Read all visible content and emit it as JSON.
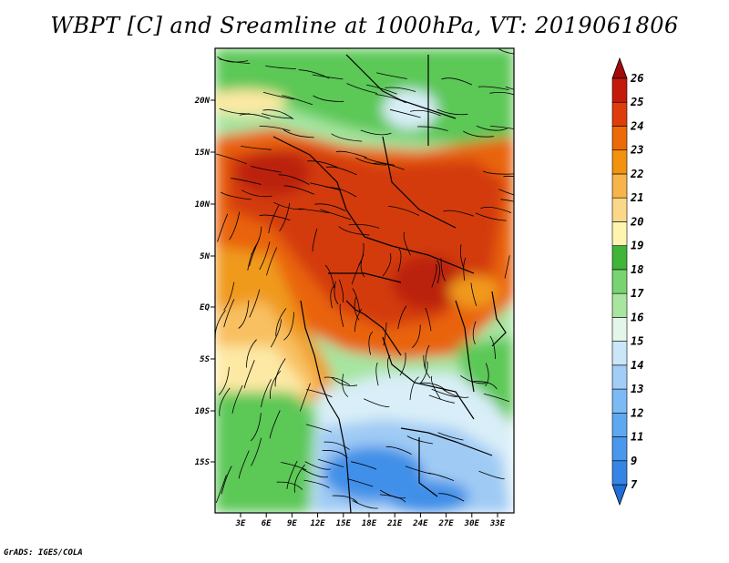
{
  "title": "WBPT [C] and Sreamline at 1000hPa, VT: 2019061806",
  "footer": "GrADS: IGES/COLA",
  "lat_labels": [
    "20N",
    "15N",
    "10N",
    "5N",
    "EQ",
    "5S",
    "10S",
    "15S"
  ],
  "lon_labels": [
    "3E",
    "6E",
    "9E",
    "12E",
    "15E",
    "18E",
    "21E",
    "24E",
    "27E",
    "30E",
    "33E"
  ],
  "colorbar": {
    "levels": [
      "7",
      "9",
      "11",
      "12",
      "13",
      "14",
      "15",
      "16",
      "17",
      "18",
      "19",
      "20",
      "21",
      "22",
      "23",
      "24",
      "25",
      "26"
    ],
    "colors": [
      "#1f6fd6",
      "#3585e6",
      "#4a97ee",
      "#5ea8f2",
      "#7cbaf5",
      "#a2cdf7",
      "#cbe5f9",
      "#e4f5ea",
      "#a8e6a0",
      "#78d470",
      "#3fb53a",
      "#fff5b0",
      "#fbd888",
      "#f7b44a",
      "#f2920e",
      "#ec6a08",
      "#df3c0c",
      "#c41a0c",
      "#a30b0b"
    ]
  },
  "map_colors": {
    "cold": "#3f8fe8",
    "cool": "#9fcaf4",
    "pale": "#d9eef8",
    "green_light": "#a6e5a0",
    "green": "#5cc856",
    "yellow": "#fde9a4",
    "orange_light": "#f8c060",
    "orange": "#f09a1c",
    "red_orange": "#e9640c",
    "red": "#d33b10",
    "dark_red": "#bb2410"
  }
}
